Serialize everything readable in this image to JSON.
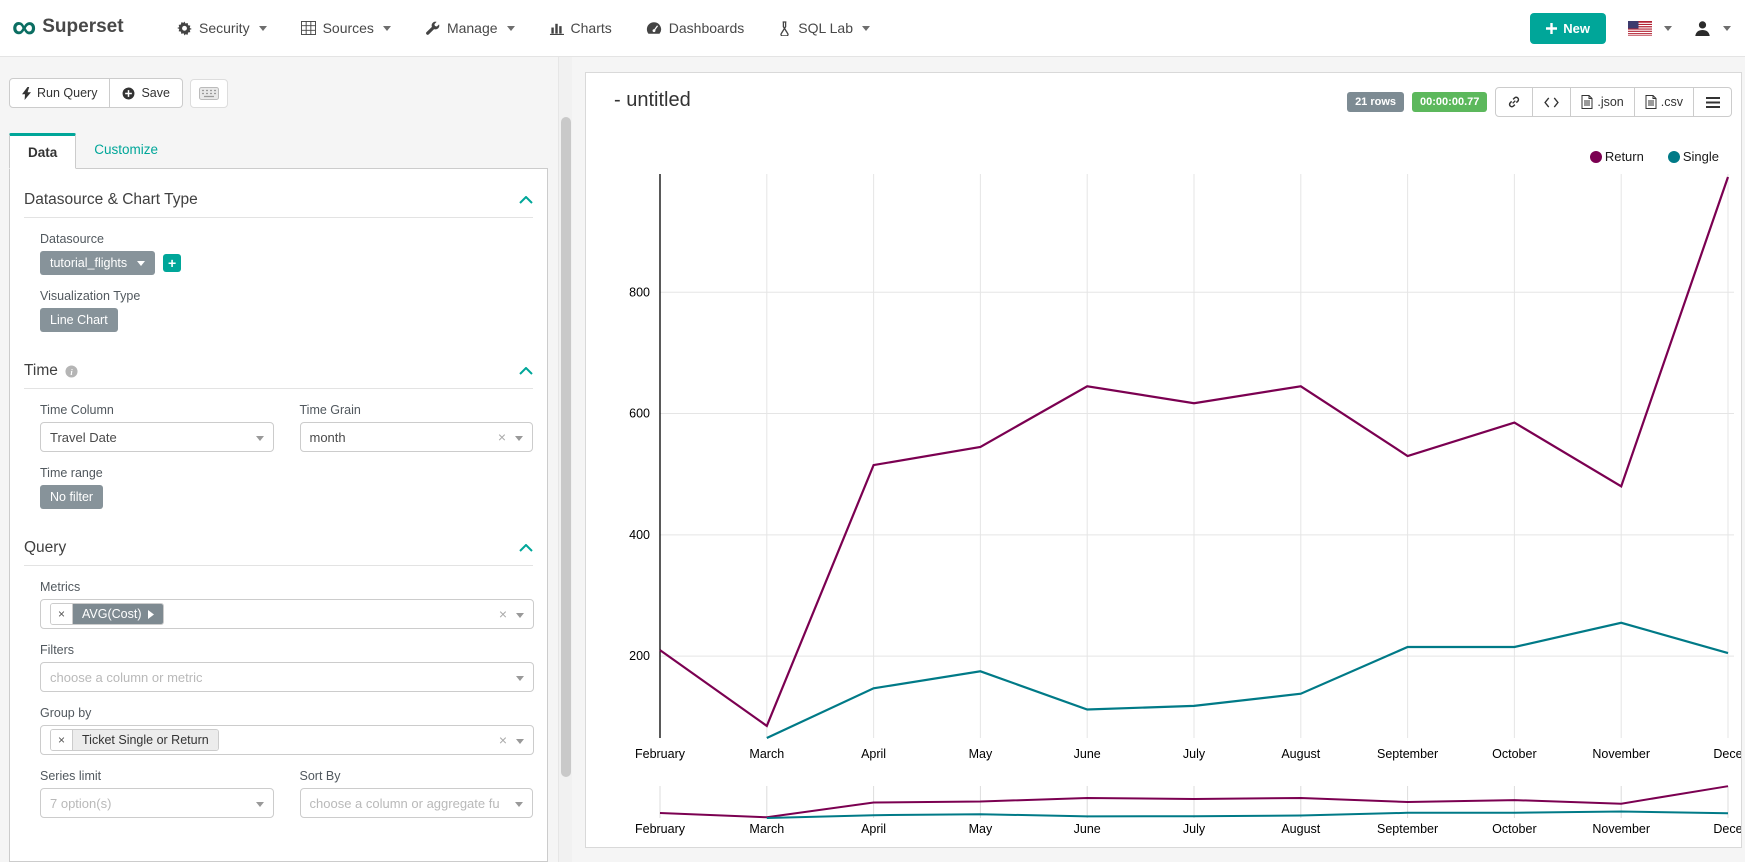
{
  "navbar": {
    "brand": "Superset",
    "logo_glyph": "∞",
    "menus": [
      {
        "label": "Security",
        "icon": "gear-icon",
        "caret": true
      },
      {
        "label": "Sources",
        "icon": "table-icon",
        "caret": true
      },
      {
        "label": "Manage",
        "icon": "wrench-icon",
        "caret": true
      },
      {
        "label": "Charts",
        "icon": "bar-chart-icon",
        "caret": false
      },
      {
        "label": "Dashboards",
        "icon": "dashboard-icon",
        "caret": false
      },
      {
        "label": "SQL Lab",
        "icon": "flask-icon",
        "caret": true
      }
    ],
    "new_button_label": "New",
    "language_icon": "us-flag-icon",
    "user_icon": "user-icon"
  },
  "toolbar": {
    "run_query_label": "Run Query",
    "save_label": "Save",
    "shortcuts_icon": "keyboard-icon"
  },
  "tabs": {
    "data": "Data",
    "customize": "Customize"
  },
  "sections": {
    "datasource": {
      "title": "Datasource & Chart Type",
      "datasource_label": "Datasource",
      "datasource_value": "tutorial_flights",
      "viz_type_label": "Visualization Type",
      "viz_type_value": "Line Chart"
    },
    "time": {
      "title": "Time",
      "time_column_label": "Time Column",
      "time_column_value": "Travel Date",
      "time_grain_label": "Time Grain",
      "time_grain_value": "month",
      "time_range_label": "Time range",
      "time_range_value": "No filter"
    },
    "query": {
      "title": "Query",
      "metrics_label": "Metrics",
      "metrics_tag": "AVG(Cost)",
      "filters_label": "Filters",
      "filters_placeholder": "choose a column or metric",
      "group_by_label": "Group by",
      "group_by_tag": "Ticket Single or Return",
      "series_limit_label": "Series limit",
      "series_limit_placeholder": "7 option(s)",
      "sort_by_label": "Sort By",
      "sort_by_placeholder": "choose a column or aggregate fu"
    }
  },
  "chart_header": {
    "title": "- untitled",
    "row_count_badge": "21 rows",
    "timer_badge": "00:00:00.77",
    "json_label": ".json",
    "csv_label": ".csv"
  },
  "colors": {
    "accent": "#00a699",
    "return_series": "#7b0051",
    "single_series": "#007A87",
    "timer_green": "#5cb85c",
    "rows_gray": "#7d8b93"
  },
  "chart_data": {
    "type": "line",
    "title": "- untitled",
    "categories": [
      "February",
      "March",
      "April",
      "May",
      "June",
      "July",
      "August",
      "September",
      "October",
      "November",
      "Dece"
    ],
    "series": [
      {
        "name": "Return",
        "color": "#7b0051",
        "values": [
          210,
          85,
          515,
          545,
          645,
          617,
          645,
          530,
          585,
          480,
          990
        ]
      },
      {
        "name": "Single",
        "color": "#007A87",
        "values": [
          null,
          65,
          147,
          175,
          112,
          118,
          138,
          215,
          215,
          255,
          205
        ]
      }
    ],
    "ylim": [
      65,
      995
    ],
    "yticks": [
      200,
      400,
      600,
      800
    ],
    "xlabel": "",
    "ylabel": "",
    "grid": true,
    "legend_position": "top-right",
    "has_context_brush_chart": true
  }
}
